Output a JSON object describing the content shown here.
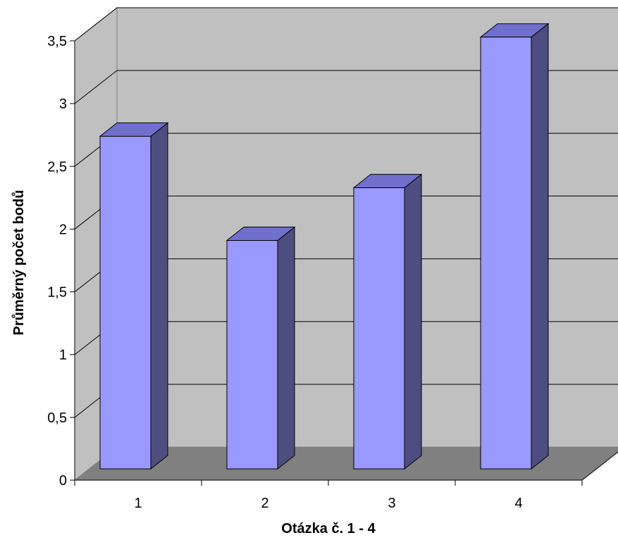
{
  "chart_data": {
    "type": "bar",
    "style": "3d-column",
    "categories": [
      "1",
      "2",
      "3",
      "4"
    ],
    "values": [
      2.65,
      1.82,
      2.24,
      3.44
    ],
    "xlabel": "Otázka č. 1 - 4",
    "ylabel": "Průměrný počet bodů",
    "ylim": [
      0,
      3.5
    ],
    "yticks": [
      "0",
      "0,5",
      "1",
      "1,5",
      "2",
      "2,5",
      "3",
      "3,5"
    ],
    "grid": true,
    "legend": "none",
    "colors": {
      "bar_front": "#9999ff",
      "bar_top": "#7070cc",
      "bar_side": "#4d4d80",
      "back_wall": "#c0c0c0",
      "side_wall": "#c0c0c0",
      "floor": "#808080",
      "gridline": "#000000"
    }
  }
}
